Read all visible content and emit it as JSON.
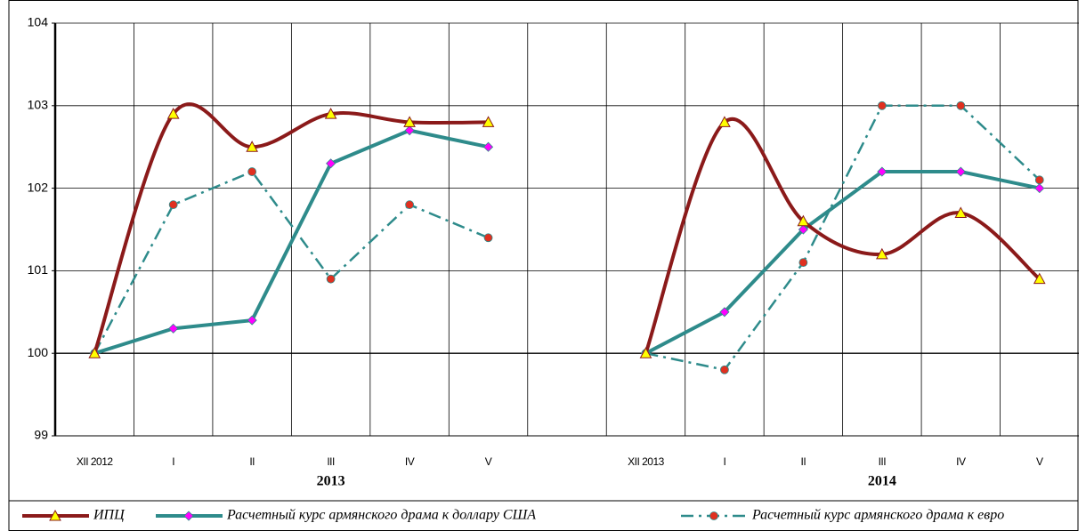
{
  "chart_data": {
    "type": "line",
    "categories": [
      "XII 2012",
      "I",
      "II",
      "III",
      "IV",
      "V",
      null,
      "XII 2013",
      "I",
      "II",
      "III",
      "IV",
      "V"
    ],
    "group_labels": [
      "2013",
      "2014"
    ],
    "ylim": [
      99,
      104
    ],
    "yticks": [
      99,
      100,
      101,
      102,
      103,
      104
    ],
    "grid": true,
    "legend": "bottom",
    "series": [
      {
        "name": "ИПЦ",
        "color": "#8b1a1a",
        "marker": "triangle",
        "marker_color": "#ffff00",
        "dash": "solid",
        "smooth": true,
        "values": [
          100,
          102.9,
          102.5,
          102.9,
          102.8,
          102.8,
          null,
          100,
          102.8,
          101.6,
          101.2,
          101.7,
          100.9
        ]
      },
      {
        "name": "Расчетный курс армянского драма к доллару США",
        "color": "#2e8b8b",
        "marker": "diamond",
        "marker_color": "#ff00ff",
        "dash": "solid",
        "smooth": false,
        "values": [
          100,
          100.3,
          100.4,
          102.3,
          102.7,
          102.5,
          null,
          100,
          100.5,
          101.5,
          102.2,
          102.2,
          102.0
        ]
      },
      {
        "name": "Расчетный курс армянского драма к евро",
        "color": "#2e8b8b",
        "marker": "circle",
        "marker_color": "#e03020",
        "dash": "dashdot",
        "smooth": false,
        "values": [
          100,
          101.8,
          102.2,
          100.9,
          101.8,
          101.4,
          null,
          100,
          99.8,
          101.1,
          103.0,
          103.0,
          102.1
        ]
      }
    ]
  }
}
